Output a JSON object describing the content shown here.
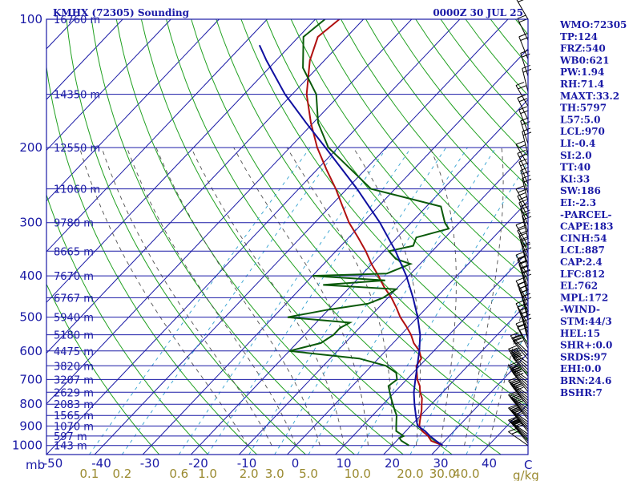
{
  "chart_data": {
    "type": "line",
    "title_left": "KMHX (72305) Sounding",
    "title_right": "0000Z 30 JUL 25",
    "pressure_unit": "mb",
    "mixing_unit": "g/kg",
    "temp_axis_unit": "C",
    "pressure_range": [
      100,
      1050
    ],
    "temp_range_at_base": [
      -50,
      50
    ],
    "skew": true,
    "pressure_levels": [
      {
        "p": 100,
        "label": "100",
        "height": "16760 m"
      },
      {
        "p": 150,
        "label": "",
        "height": "14350 m"
      },
      {
        "p": 200,
        "label": "200",
        "height": "12550 m"
      },
      {
        "p": 250,
        "label": "",
        "height": "11060 m"
      },
      {
        "p": 300,
        "label": "300",
        "height": "9780 m"
      },
      {
        "p": 350,
        "label": "",
        "height": "8665 m"
      },
      {
        "p": 400,
        "label": "400",
        "height": "7670 m"
      },
      {
        "p": 450,
        "label": "",
        "height": "6767 m"
      },
      {
        "p": 500,
        "label": "500",
        "height": "5940 m"
      },
      {
        "p": 550,
        "label": "",
        "height": "5180 m"
      },
      {
        "p": 600,
        "label": "600",
        "height": "4475 m"
      },
      {
        "p": 650,
        "label": "",
        "height": "3820 m"
      },
      {
        "p": 700,
        "label": "700",
        "height": "3207 m"
      },
      {
        "p": 750,
        "label": "",
        "height": "2629 m"
      },
      {
        "p": 800,
        "label": "800",
        "height": "2083 m"
      },
      {
        "p": 850,
        "label": "",
        "height": "1565 m"
      },
      {
        "p": 900,
        "label": "900",
        "height": "1070 m"
      },
      {
        "p": 950,
        "label": "",
        "height": "597 m"
      },
      {
        "p": 1000,
        "label": "1000",
        "height": "143 m"
      }
    ],
    "temp_ticks": [
      "-50",
      "-40",
      "-30",
      "-20",
      "-10",
      "0",
      "10",
      "20",
      "30",
      "40"
    ],
    "mixing_ratio_ticks": [
      "0.1",
      "0.2",
      "0.6",
      "1.0",
      "2.0",
      "3.0",
      "5.0",
      "10.0",
      "20.0",
      "30.0",
      "40.0"
    ],
    "series": [
      {
        "role": "temperature",
        "color": "#b01010",
        "points": [
          [
            1000,
            30.5
          ],
          [
            975,
            27.2
          ],
          [
            950,
            25.6
          ],
          [
            925,
            23.4
          ],
          [
            900,
            21.8
          ],
          [
            875,
            20.9
          ],
          [
            850,
            20.0
          ],
          [
            825,
            19.1
          ],
          [
            800,
            18.0
          ],
          [
            775,
            16.9
          ],
          [
            750,
            15.3
          ],
          [
            725,
            14.0
          ],
          [
            700,
            12.2
          ],
          [
            675,
            10.8
          ],
          [
            650,
            9.3
          ],
          [
            625,
            8.9
          ],
          [
            600,
            7.0
          ],
          [
            575,
            4.3
          ],
          [
            550,
            2.1
          ],
          [
            525,
            -0.6
          ],
          [
            500,
            -3.6
          ],
          [
            475,
            -6.3
          ],
          [
            450,
            -9.3
          ],
          [
            425,
            -12.9
          ],
          [
            400,
            -16.3
          ],
          [
            375,
            -20.1
          ],
          [
            350,
            -23.8
          ],
          [
            325,
            -28.1
          ],
          [
            300,
            -32.9
          ],
          [
            275,
            -37.4
          ],
          [
            250,
            -42.3
          ],
          [
            225,
            -48.1
          ],
          [
            200,
            -54.3
          ],
          [
            175,
            -60.5
          ],
          [
            150,
            -67.0
          ],
          [
            125,
            -73.0
          ],
          [
            110,
            -76.0
          ],
          [
            100,
            -75.0
          ]
        ]
      },
      {
        "role": "dewpoint",
        "color": "#0a5a0a",
        "points": [
          [
            1000,
            23.5
          ],
          [
            975,
            21.0
          ],
          [
            960,
            20.0
          ],
          [
            950,
            20.5
          ],
          [
            925,
            18.0
          ],
          [
            900,
            17.0
          ],
          [
            875,
            16.0
          ],
          [
            850,
            15.0
          ],
          [
            825,
            13.5
          ],
          [
            800,
            12.0
          ],
          [
            775,
            10.5
          ],
          [
            750,
            9.0
          ],
          [
            725,
            7.5
          ],
          [
            700,
            8.0
          ],
          [
            675,
            6.5
          ],
          [
            650,
            3.0
          ],
          [
            625,
            -4.0
          ],
          [
            600,
            -20.0
          ],
          [
            575,
            -15.0
          ],
          [
            550,
            -14.0
          ],
          [
            530,
            -14.0
          ],
          [
            515,
            -13.0
          ],
          [
            500,
            -27.0
          ],
          [
            480,
            -20.0
          ],
          [
            465,
            -13.0
          ],
          [
            450,
            -11.0
          ],
          [
            430,
            -10.0
          ],
          [
            420,
            -26.0
          ],
          [
            410,
            -14.0
          ],
          [
            400,
            -30.0
          ],
          [
            395,
            -15.0
          ],
          [
            375,
            -12.0
          ],
          [
            365,
            -16.0
          ],
          [
            350,
            -19.0
          ],
          [
            340,
            -15.0
          ],
          [
            325,
            -16.0
          ],
          [
            310,
            -11.0
          ],
          [
            300,
            -13.0
          ],
          [
            275,
            -17.0
          ],
          [
            250,
            -35.0
          ],
          [
            225,
            -43.0
          ],
          [
            200,
            -52.0
          ],
          [
            175,
            -59.0
          ],
          [
            150,
            -65.0
          ],
          [
            130,
            -73.0
          ],
          [
            110,
            -79.0
          ],
          [
            100,
            -78.0
          ]
        ]
      },
      {
        "role": "parcel",
        "color": "#1010a0",
        "points": [
          [
            1000,
            30.5
          ],
          [
            975,
            28.2
          ],
          [
            950,
            26.0
          ],
          [
            925,
            24.0
          ],
          [
            900,
            21.5
          ],
          [
            887,
            20.8
          ],
          [
            850,
            19.0
          ],
          [
            800,
            16.5
          ],
          [
            750,
            14.0
          ],
          [
            700,
            11.8
          ],
          [
            650,
            9.5
          ],
          [
            600,
            7.0
          ],
          [
            550,
            4.0
          ],
          [
            500,
            0.0
          ],
          [
            450,
            -4.8
          ],
          [
            400,
            -10.5
          ],
          [
            350,
            -17.6
          ],
          [
            300,
            -26.5
          ],
          [
            250,
            -37.9
          ],
          [
            200,
            -52.6
          ],
          [
            175,
            -61.5
          ],
          [
            150,
            -71.5
          ],
          [
            125,
            -82.0
          ],
          [
            115,
            -86.5
          ]
        ]
      }
    ]
  },
  "indices": [
    "WMO:72305",
    "TP:124",
    "FRZ:540",
    "WB0:621",
    "PW:1.94",
    "RH:71.4",
    "MAXT:33.2",
    "TH:5797",
    "L57:5.0",
    "LCL:970",
    "LI:-0.4",
    "SI:2.0",
    "TT:40",
    "KI:33",
    "SW:186",
    "EI:-2.3",
    "-PARCEL-",
    "CAPE:183",
    "CINH:54",
    "LCL:887",
    "CAP:2.4",
    "LFC:812",
    "EL:762",
    "MPL:172",
    "-WIND-",
    "STM:44/3",
    "HEL:15",
    "SHR+:0.0",
    "SRDS:97",
    "EHI:0.0",
    "BRN:24.6",
    "BSHR:7"
  ],
  "colors": {
    "isobar": "#1a1aa6",
    "isotherm": "#1a1aa6",
    "dry_adiabat": "#20a020",
    "moist_adiabat": "#505050",
    "mixing_ratio": "#30a0d0"
  }
}
